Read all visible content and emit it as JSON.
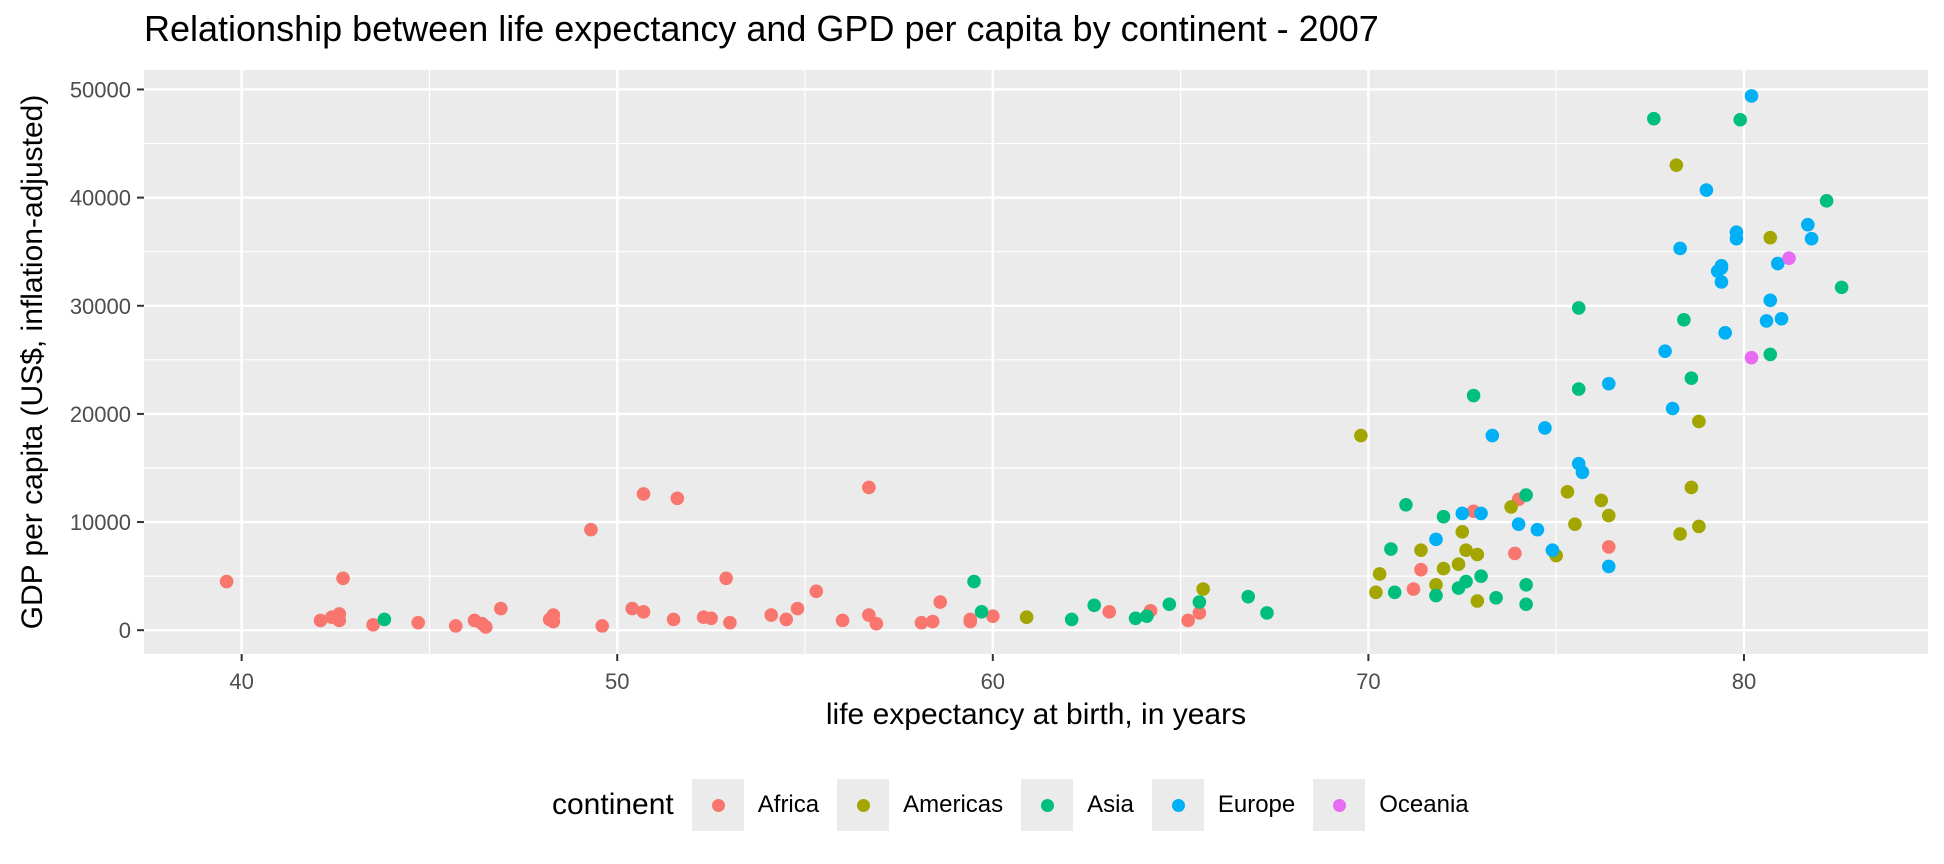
{
  "chart_data": {
    "type": "scatter",
    "title": "Relationship between life expectancy and GPD per capita by continent - 2007",
    "xlabel": "life expectancy at birth, in years",
    "ylabel": "GDP per capita (US$, inflation-adjusted)",
    "xlim": [
      37.4,
      84.9
    ],
    "ylim": [
      -2200,
      51800
    ],
    "x_ticks": [
      40,
      50,
      60,
      70,
      80
    ],
    "x_tick_labels": [
      "40",
      "50",
      "60",
      "70",
      "80"
    ],
    "y_ticks": [
      0,
      10000,
      20000,
      30000,
      40000,
      50000
    ],
    "y_tick_labels": [
      "0",
      "10000",
      "20000",
      "30000",
      "40000",
      "50000"
    ],
    "grid": true,
    "legend_position": "bottom",
    "legend_title": "continent",
    "series": [
      {
        "name": "Africa",
        "color": "#F8766D",
        "points": [
          [
            39.6,
            4500
          ],
          [
            42.1,
            900
          ],
          [
            42.4,
            1200
          ],
          [
            42.6,
            1500
          ],
          [
            42.6,
            900
          ],
          [
            42.7,
            4800
          ],
          [
            43.5,
            500
          ],
          [
            44.7,
            700
          ],
          [
            45.7,
            400
          ],
          [
            46.2,
            900
          ],
          [
            46.4,
            600
          ],
          [
            46.5,
            300
          ],
          [
            46.9,
            2000
          ],
          [
            48.2,
            1000
          ],
          [
            48.3,
            1400
          ],
          [
            48.3,
            800
          ],
          [
            49.3,
            9300
          ],
          [
            49.6,
            400
          ],
          [
            50.4,
            2000
          ],
          [
            50.7,
            1700
          ],
          [
            50.7,
            12600
          ],
          [
            51.5,
            1000
          ],
          [
            51.6,
            12200
          ],
          [
            52.3,
            1200
          ],
          [
            52.5,
            1100
          ],
          [
            52.9,
            4800
          ],
          [
            53.0,
            700
          ],
          [
            54.1,
            1400
          ],
          [
            54.5,
            1000
          ],
          [
            54.8,
            2000
          ],
          [
            55.3,
            3600
          ],
          [
            56.0,
            900
          ],
          [
            56.7,
            1400
          ],
          [
            56.7,
            13200
          ],
          [
            56.9,
            600
          ],
          [
            58.1,
            700
          ],
          [
            58.4,
            800
          ],
          [
            58.6,
            2600
          ],
          [
            59.4,
            1000
          ],
          [
            59.4,
            800
          ],
          [
            60.0,
            1300
          ],
          [
            63.1,
            1700
          ],
          [
            64.2,
            1800
          ],
          [
            65.2,
            900
          ],
          [
            65.5,
            1600
          ],
          [
            71.2,
            3800
          ],
          [
            71.4,
            5600
          ],
          [
            72.8,
            11000
          ],
          [
            73.9,
            7100
          ],
          [
            74.0,
            12100
          ],
          [
            76.4,
            7700
          ]
        ]
      },
      {
        "name": "Americas",
        "color": "#A3A500",
        "points": [
          [
            60.9,
            1200
          ],
          [
            65.6,
            3800
          ],
          [
            69.8,
            18000
          ],
          [
            70.2,
            3500
          ],
          [
            70.3,
            5200
          ],
          [
            71.4,
            7400
          ],
          [
            71.8,
            4200
          ],
          [
            72.0,
            5700
          ],
          [
            72.4,
            6100
          ],
          [
            72.5,
            9100
          ],
          [
            72.6,
            7400
          ],
          [
            72.9,
            7000
          ],
          [
            72.9,
            2700
          ],
          [
            73.8,
            11400
          ],
          [
            75.0,
            6900
          ],
          [
            75.3,
            12800
          ],
          [
            75.5,
            9800
          ],
          [
            76.2,
            12000
          ],
          [
            76.4,
            10600
          ],
          [
            78.2,
            43000
          ],
          [
            78.3,
            8900
          ],
          [
            78.6,
            13200
          ],
          [
            78.8,
            9600
          ],
          [
            78.8,
            19300
          ],
          [
            80.7,
            36300
          ]
        ]
      },
      {
        "name": "Asia",
        "color": "#00BF7D",
        "points": [
          [
            43.8,
            1000
          ],
          [
            59.5,
            4500
          ],
          [
            59.7,
            1700
          ],
          [
            62.1,
            1000
          ],
          [
            62.7,
            2300
          ],
          [
            63.8,
            1100
          ],
          [
            64.1,
            1300
          ],
          [
            64.7,
            2400
          ],
          [
            65.5,
            2600
          ],
          [
            66.8,
            3100
          ],
          [
            67.3,
            1600
          ],
          [
            70.6,
            7500
          ],
          [
            70.7,
            3500
          ],
          [
            71.0,
            11600
          ],
          [
            71.8,
            3200
          ],
          [
            72.0,
            10500
          ],
          [
            72.4,
            3900
          ],
          [
            72.6,
            4500
          ],
          [
            72.8,
            21700
          ],
          [
            73.0,
            5000
          ],
          [
            73.4,
            3000
          ],
          [
            74.2,
            4200
          ],
          [
            74.2,
            12500
          ],
          [
            74.2,
            2400
          ],
          [
            75.6,
            29800
          ],
          [
            75.6,
            22300
          ],
          [
            77.6,
            47300
          ],
          [
            78.4,
            28700
          ],
          [
            78.6,
            23300
          ],
          [
            79.9,
            47200
          ],
          [
            80.7,
            25500
          ],
          [
            82.2,
            39700
          ],
          [
            82.6,
            31700
          ]
        ]
      },
      {
        "name": "Europe",
        "color": "#00B0F6",
        "points": [
          [
            71.8,
            8400
          ],
          [
            72.5,
            10800
          ],
          [
            73.0,
            10800
          ],
          [
            73.3,
            18000
          ],
          [
            74.0,
            9800
          ],
          [
            74.5,
            9300
          ],
          [
            74.7,
            18700
          ],
          [
            74.9,
            7400
          ],
          [
            75.6,
            15400
          ],
          [
            75.7,
            14600
          ],
          [
            76.4,
            5900
          ],
          [
            76.4,
            22800
          ],
          [
            77.9,
            25800
          ],
          [
            78.1,
            20500
          ],
          [
            78.3,
            35300
          ],
          [
            79.0,
            40700
          ],
          [
            79.3,
            33200
          ],
          [
            79.4,
            32200
          ],
          [
            79.4,
            33700
          ],
          [
            79.4,
            33500
          ],
          [
            79.5,
            27500
          ],
          [
            79.8,
            36800
          ],
          [
            79.8,
            36200
          ],
          [
            80.2,
            49400
          ],
          [
            80.6,
            28600
          ],
          [
            80.7,
            30500
          ],
          [
            80.9,
            33900
          ],
          [
            81.0,
            28800
          ],
          [
            81.7,
            37500
          ],
          [
            81.8,
            36200
          ]
        ]
      },
      {
        "name": "Oceania",
        "color": "#E76BF3",
        "points": [
          [
            80.2,
            25200
          ],
          [
            81.2,
            34400
          ]
        ]
      }
    ]
  }
}
